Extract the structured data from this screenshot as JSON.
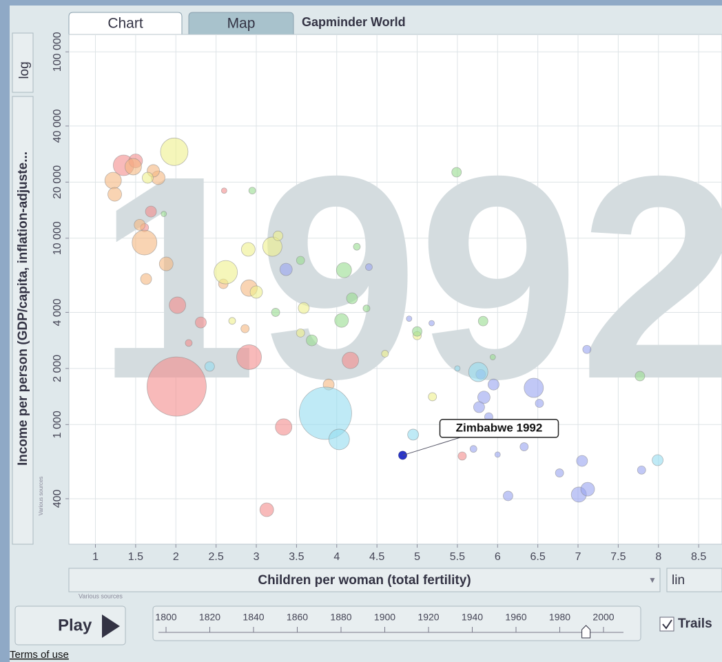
{
  "tabs": [
    "Chart",
    "Map"
  ],
  "app_title": "Gapminder World",
  "y_scale_menu": "log",
  "x_scale_menu": "lin",
  "sources_y": "Various sources",
  "sources_x": "Various sources",
  "play": "Play",
  "trails": "Trails",
  "terms": "Terms of use",
  "chart_data": {
    "type": "scatter",
    "watermark": "1992",
    "x_label": "Children per woman (total fertility)",
    "y_label": "Income per person (GDP/capita, inflation-adjuste...",
    "log_y": true,
    "grid": true,
    "xlim": [
      0.67,
      8.79
    ],
    "ylim": [
      228,
      124000
    ],
    "xticks": [
      1,
      1.5,
      2,
      2.5,
      3,
      3.5,
      4,
      4.5,
      5,
      5.5,
      6,
      6.5,
      7,
      7.5,
      8,
      8.5
    ],
    "yticks": [
      400,
      {
        "value": 1000,
        "label": "1 000"
      },
      {
        "value": 2000,
        "label": "2 000"
      },
      {
        "value": 4000,
        "label": "4 000"
      },
      {
        "value": 10000,
        "label": "10 000"
      },
      {
        "value": 20000,
        "label": "20 000"
      },
      {
        "value": 40000,
        "label": "40 000"
      },
      {
        "value": 100000,
        "label": "100 000"
      }
    ],
    "series": [
      {
        "color": "#f48c8c",
        "x": [
          2.01,
          3.34,
          2.91,
          2.02,
          3.13,
          4.17,
          1.35,
          2.31,
          1.69,
          5.56,
          1.61,
          2.16,
          1.5,
          2.6
        ],
        "values": [
          1600,
          970,
          2300,
          4370,
          349,
          2210,
          24600,
          3530,
          13900,
          678,
          11400,
          2740,
          26000,
          18000
        ],
        "sizes": [
          43,
          12,
          18,
          12,
          10,
          12,
          15,
          8,
          8,
          6,
          6,
          5,
          10,
          4
        ]
      },
      {
        "color": "#f5b880",
        "x": [
          1.61,
          1.22,
          1.24,
          1.47,
          1.78,
          1.88,
          1.63,
          2.91,
          3.9,
          2.86,
          2.59,
          1.72,
          1.55
        ],
        "values": [
          9480,
          20400,
          17200,
          24200,
          21100,
          7280,
          6040,
          5400,
          1640,
          3270,
          5690,
          23000,
          11800
        ],
        "sizes": [
          18,
          12,
          10,
          12,
          10,
          10,
          8,
          12,
          8,
          6,
          7,
          9,
          8
        ]
      },
      {
        "color": "#eef08c",
        "x": [
          1.98,
          2.62,
          3.2,
          2.9,
          3.0,
          3.59,
          1.65,
          3.27,
          3.55,
          5.0,
          5.19,
          4.6,
          2.7
        ],
        "values": [
          29100,
          6570,
          9010,
          8710,
          5140,
          4220,
          21100,
          10300,
          3100,
          3000,
          1410,
          2400,
          3600
        ],
        "sizes": [
          20,
          17,
          14,
          10,
          9,
          8,
          8,
          7,
          6,
          6,
          6,
          5,
          5
        ]
      },
      {
        "color": "#98dc90",
        "x": [
          4.09,
          4.06,
          3.69,
          4.19,
          7.77,
          5.49,
          5.82,
          5.0,
          2.95,
          3.24,
          4.25,
          3.55,
          4.37,
          1.85,
          5.94
        ],
        "values": [
          6740,
          3620,
          2830,
          4760,
          1820,
          22600,
          3590,
          3160,
          18000,
          4000,
          9000,
          7600,
          4200,
          13500,
          2300
        ],
        "sizes": [
          11,
          10,
          8,
          8,
          7,
          7,
          7,
          7,
          5,
          6,
          5,
          6,
          5,
          4,
          4
        ]
      },
      {
        "color": "#98a4f0",
        "x": [
          6.45,
          7.01,
          7.12,
          5.83,
          5.95,
          5.77,
          6.13,
          7.05,
          6.33,
          5.79,
          3.37,
          7.79,
          7.11,
          6.77,
          6.52,
          6.62,
          5.89,
          5.18,
          4.9,
          4.4,
          6.0,
          5.7
        ],
        "values": [
          1574,
          421,
          450,
          1400,
          1640,
          1240,
          414,
          638,
          760,
          1860,
          6800,
          570,
          2530,
          550,
          1300,
          1000,
          1100,
          3500,
          3700,
          7000,
          690,
          740
        ],
        "sizes": [
          14,
          11,
          10,
          9,
          8,
          8,
          7,
          8,
          6,
          7,
          9,
          6,
          6,
          6,
          6,
          6,
          6,
          4,
          4,
          5,
          4,
          5
        ]
      },
      {
        "color": "#94dcf0",
        "x": [
          3.86,
          4.03,
          5.76,
          4.95,
          7.99,
          2.42,
          5.5
        ],
        "values": [
          1150,
          832,
          1914,
          883,
          644,
          2050,
          2000
        ],
        "sizes": [
          38,
          15,
          14,
          8,
          8,
          7,
          4
        ]
      },
      {
        "color": "#2a35c8",
        "x": [
          4.82
        ],
        "values": [
          684
        ],
        "sizes": [
          6
        ],
        "annotation": "Zimbabwe 1992"
      }
    ]
  },
  "timeline": {
    "ticks": [
      1800,
      1820,
      1840,
      1860,
      1880,
      1900,
      1920,
      1940,
      1960,
      1980,
      2000
    ],
    "value": 1992
  }
}
